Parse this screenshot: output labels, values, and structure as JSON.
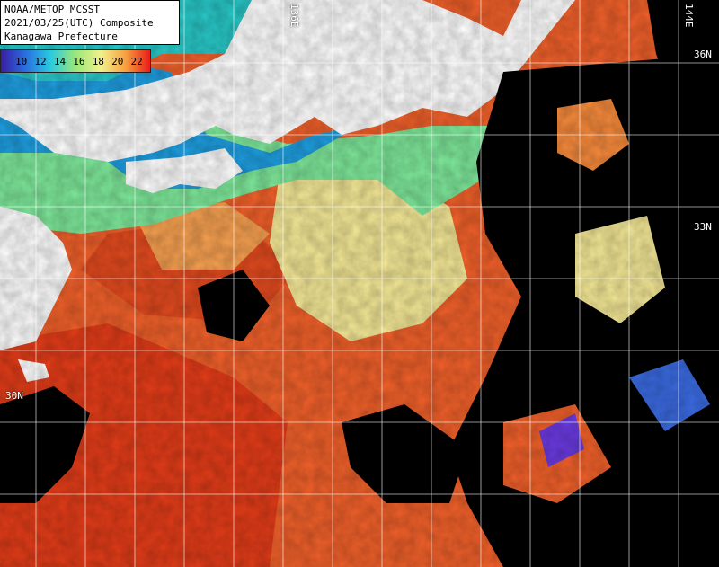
{
  "title": {
    "line1": "NOAA/METOP MCSST",
    "line2": "2021/03/25(UTC) Composite",
    "line3": "Kanagawa Prefecture"
  },
  "color_scale": {
    "ticks": [
      "10",
      "12",
      "14",
      "16",
      "18",
      "20",
      "22"
    ],
    "colors": [
      "#3a1aa0",
      "#2a6fe0",
      "#28c8e0",
      "#9ae87a",
      "#f2f08a",
      "#f7a040",
      "#e81818"
    ]
  },
  "graticule": {
    "lon_labels": [
      "136E",
      "144E"
    ],
    "lat_labels": [
      "36N",
      "33N",
      "30N"
    ]
  },
  "legend_colors": {
    "land": "#ffffff",
    "cloud": "#000000",
    "cold": "#1e9ee0",
    "cool": "#7ee89a",
    "mild": "#f4e896",
    "warm": "#f68a3c",
    "hot": "#e23c18"
  }
}
